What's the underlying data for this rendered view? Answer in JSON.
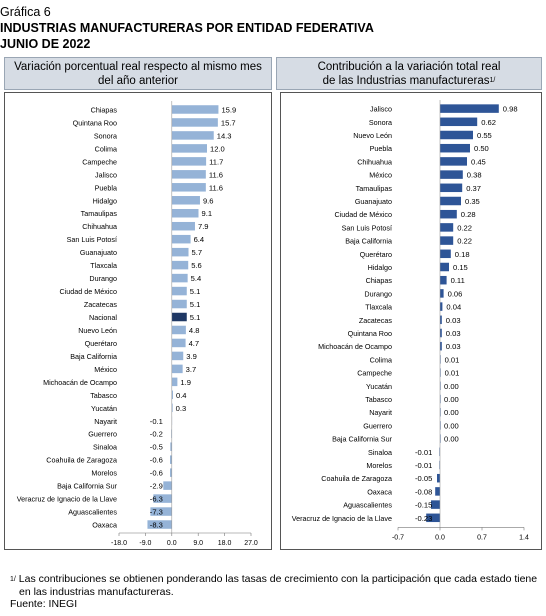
{
  "header": {
    "line1": "Gráfica 6",
    "line2": "INDUSTRIAS MANUFACTURERAS POR ENTIDAD FEDERATIVA",
    "line3": "JUNIO DE 2022"
  },
  "footer": {
    "note_marker": "1/",
    "note_line1": "Las contribuciones se obtienen ponderando las tasas de crecimiento con la participación que cada estado tiene",
    "note_line2": "en las industrias manufactureras.",
    "source": "Fuente: INEGI"
  },
  "colors": {
    "bar": "#95b3d7",
    "highlight": "#1f3864",
    "bar_right": "#2e5597",
    "panel_head": "#d6dce4"
  },
  "chart_data": [
    {
      "type": "bar",
      "orientation": "horizontal",
      "title_line1": "Variación porcentual real respecto al mismo mes",
      "title_line2": "del año anterior",
      "highlight_category": "Nacional",
      "categories": [
        "Chiapas",
        "Quintana Roo",
        "Sonora",
        "Colima",
        "Campeche",
        "Jalisco",
        "Puebla",
        "Hidalgo",
        "Tamaulipas",
        "Chihuahua",
        "San Luis Potosí",
        "Guanajuato",
        "Tlaxcala",
        "Durango",
        "Ciudad de México",
        "Zacatecas",
        "Nacional",
        "Nuevo León",
        "Querétaro",
        "Baja California",
        "México",
        "Michoacán de Ocampo",
        "Tabasco",
        "Yucatán",
        "Nayarit",
        "Guerrero",
        "Sinaloa",
        "Coahuila de Zaragoza",
        "Morelos",
        "Baja California Sur",
        "Veracruz de Ignacio de la Llave",
        "Aguascalientes",
        "Oaxaca"
      ],
      "values": [
        15.9,
        15.7,
        14.3,
        12.0,
        11.7,
        11.6,
        11.6,
        9.6,
        9.1,
        7.9,
        6.4,
        5.7,
        5.6,
        5.4,
        5.1,
        5.1,
        5.1,
        4.8,
        4.7,
        3.9,
        3.7,
        1.9,
        0.4,
        0.3,
        -0.1,
        -0.2,
        -0.5,
        -0.6,
        -0.6,
        -2.9,
        -6.3,
        -7.3,
        -8.3
      ],
      "labels": [
        "15.9",
        "15.7",
        "14.3",
        "12.0",
        "11.7",
        "11.6",
        "11.6",
        "9.6",
        "9.1",
        "7.9",
        "6.4",
        "5.7",
        "5.6",
        "5.4",
        "5.1",
        "5.1",
        "5.1",
        "4.8",
        "4.7",
        "3.9",
        "3.7",
        "1.9",
        "0.4",
        "0.3",
        "-0.1",
        "-0.2",
        "-0.5",
        "-0.6",
        "-0.6",
        "-2.9",
        "-6.3",
        "-7.3",
        "-8.3"
      ],
      "xlim": [
        -18.0,
        27.0
      ],
      "xticks": [
        "-18.0",
        "-9.0",
        "0.0",
        "9.0",
        "18.0",
        "27.0"
      ],
      "xtick_values": [
        -18,
        -9,
        0,
        9,
        18,
        27
      ]
    },
    {
      "type": "bar",
      "orientation": "horizontal",
      "title_line1": "Contribución a la variación total real",
      "title_line2": "de las Industrias manufactureras",
      "title_note": "1/",
      "categories": [
        "Jalisco",
        "Sonora",
        "Nuevo León",
        "Puebla",
        "Chihuahua",
        "México",
        "Tamaulipas",
        "Guanajuato",
        "Ciudad de México",
        "San Luis Potosí",
        "Baja California",
        "Querétaro",
        "Hidalgo",
        "Chiapas",
        "Durango",
        "Tlaxcala",
        "Zacatecas",
        "Quintana Roo",
        "Michoacán de Ocampo",
        "Colima",
        "Campeche",
        "Yucatán",
        "Tabasco",
        "Nayarit",
        "Guerrero",
        "Baja California Sur",
        "Sinaloa",
        "Morelos",
        "Coahuila de Zaragoza",
        "Oaxaca",
        "Aguascalientes",
        "Veracruz de Ignacio de la Llave"
      ],
      "values": [
        0.98,
        0.62,
        0.55,
        0.5,
        0.45,
        0.38,
        0.37,
        0.35,
        0.28,
        0.22,
        0.22,
        0.18,
        0.15,
        0.11,
        0.06,
        0.04,
        0.03,
        0.03,
        0.03,
        0.01,
        0.01,
        0.0,
        0.0,
        0.0,
        0.0,
        0.0,
        -0.01,
        -0.01,
        -0.05,
        -0.08,
        -0.15,
        -0.23
      ],
      "labels": [
        "0.98",
        "0.62",
        "0.55",
        "0.50",
        "0.45",
        "0.38",
        "0.37",
        "0.35",
        "0.28",
        "0.22",
        "0.22",
        "0.18",
        "0.15",
        "0.11",
        "0.06",
        "0.04",
        "0.03",
        "0.03",
        "0.03",
        "0.01",
        "0.01",
        "0.00",
        "0.00",
        "0.00",
        "0.00",
        "0.00",
        "-0.01",
        "-0.01",
        "-0.05",
        "-0.08",
        "-0.15",
        "-0.23"
      ],
      "xlim": [
        -0.7,
        1.4
      ],
      "xticks": [
        "-0.7",
        "0.0",
        "0.7",
        "1.4"
      ],
      "xtick_values": [
        -0.7,
        0,
        0.7,
        1.4
      ]
    }
  ]
}
